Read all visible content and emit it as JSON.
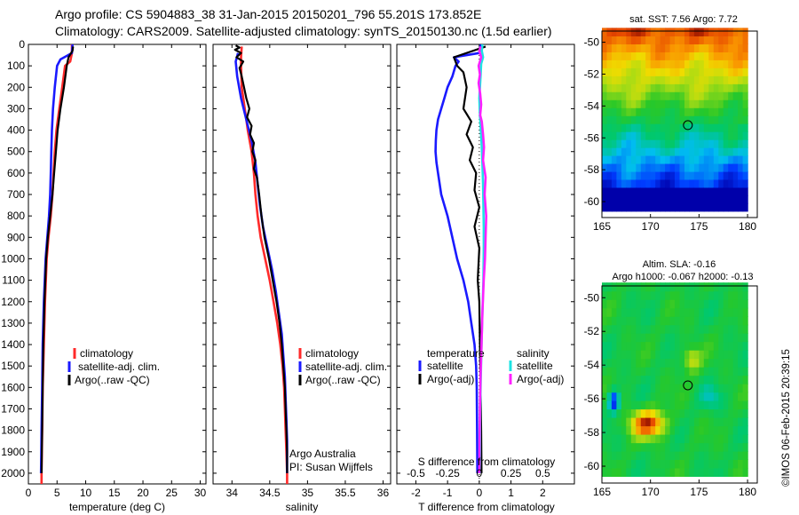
{
  "titles": {
    "line1": "Argo profile: CS 5904883_38 31-Jan-2015 20150201_796 55.201S 173.852E",
    "line2": "Climatology: CARS2009. Satellite-adjusted climatology: synTS_20150130.nc (1.5d earlier)"
  },
  "colors": {
    "red": "#ff2a2a",
    "blue": "#1a1aff",
    "black": "#000000",
    "cyan": "#1de3e3",
    "magenta": "#ff20ff"
  },
  "chart_data": [
    {
      "type": "line",
      "panel": "temperature",
      "xlabel": "temperature (deg C)",
      "ylabel": "",
      "xlim": [
        0,
        31
      ],
      "ylim": [
        2050,
        0
      ],
      "xticks": [
        0,
        5,
        10,
        15,
        20,
        25,
        30
      ],
      "yticks": [
        0,
        100,
        200,
        300,
        400,
        500,
        600,
        700,
        800,
        900,
        1000,
        1100,
        1200,
        1300,
        1400,
        1500,
        1600,
        1700,
        1800,
        1900,
        2000
      ],
      "legend": [
        "climatology",
        "satellite-adj. clim.",
        "Argo(..raw -QC)"
      ],
      "series": [
        {
          "name": "climatology",
          "color": "red",
          "points": [
            [
              7.6,
              0
            ],
            [
              7.6,
              40
            ],
            [
              7.3,
              80
            ],
            [
              6.4,
              100
            ],
            [
              5.9,
              200
            ],
            [
              5.4,
              300
            ],
            [
              4.9,
              400
            ],
            [
              4.6,
              500
            ],
            [
              4.4,
              600
            ],
            [
              4.2,
              700
            ],
            [
              3.9,
              800
            ],
            [
              3.5,
              900
            ],
            [
              3.2,
              1000
            ],
            [
              2.9,
              1200
            ],
            [
              2.7,
              1400
            ],
            [
              2.5,
              1600
            ],
            [
              2.4,
              1800
            ],
            [
              2.3,
              2000
            ],
            [
              2.3,
              2050
            ]
          ]
        },
        {
          "name": "satellite-adj. clim.",
          "color": "blue",
          "points": [
            [
              7.7,
              0
            ],
            [
              7.6,
              40
            ],
            [
              5.6,
              70
            ],
            [
              5.0,
              100
            ],
            [
              4.6,
              200
            ],
            [
              4.3,
              300
            ],
            [
              4.1,
              400
            ],
            [
              4.0,
              500
            ],
            [
              3.9,
              600
            ],
            [
              3.8,
              700
            ],
            [
              3.6,
              800
            ],
            [
              3.3,
              900
            ],
            [
              3.0,
              1000
            ],
            [
              2.7,
              1200
            ],
            [
              2.5,
              1400
            ],
            [
              2.4,
              1600
            ],
            [
              2.3,
              1800
            ],
            [
              2.2,
              2000
            ]
          ]
        },
        {
          "name": "Argo(..raw -QC)",
          "color": "black",
          "points": [
            [
              7.8,
              10
            ],
            [
              7.7,
              30
            ],
            [
              7.0,
              60
            ],
            [
              6.7,
              100
            ],
            [
              6.2,
              200
            ],
            [
              5.6,
              300
            ],
            [
              5.1,
              400
            ],
            [
              4.8,
              500
            ],
            [
              4.5,
              600
            ],
            [
              4.2,
              700
            ],
            [
              3.8,
              800
            ],
            [
              3.4,
              900
            ],
            [
              3.1,
              1000
            ],
            [
              2.8,
              1200
            ],
            [
              2.6,
              1400
            ],
            [
              2.5,
              1600
            ],
            [
              2.4,
              1800
            ],
            [
              2.3,
              2000
            ]
          ]
        }
      ]
    },
    {
      "type": "line",
      "panel": "salinity",
      "xlabel": "salinity",
      "xlim": [
        33.75,
        36.1
      ],
      "ylim": [
        2050,
        0
      ],
      "xticks": [
        34,
        34.5,
        35,
        35.5,
        36
      ],
      "legend": [
        "climatology",
        "satellite-adj. clim.",
        "Argo(..raw -QC)"
      ],
      "annotations": [
        "Argo Australia",
        "PI: Susan Wijffels"
      ],
      "series": [
        {
          "name": "climatology",
          "color": "red",
          "points": [
            [
              34.13,
              10
            ],
            [
              34.12,
              60
            ],
            [
              34.12,
              100
            ],
            [
              34.13,
              200
            ],
            [
              34.17,
              300
            ],
            [
              34.21,
              400
            ],
            [
              34.26,
              500
            ],
            [
              34.29,
              600
            ],
            [
              34.31,
              700
            ],
            [
              34.34,
              800
            ],
            [
              34.38,
              900
            ],
            [
              34.44,
              1000
            ],
            [
              34.5,
              1100
            ],
            [
              34.55,
              1200
            ],
            [
              34.6,
              1300
            ],
            [
              34.64,
              1400
            ],
            [
              34.67,
              1500
            ],
            [
              34.69,
              1600
            ],
            [
              34.7,
              1700
            ],
            [
              34.71,
              1800
            ],
            [
              34.72,
              1900
            ],
            [
              34.73,
              2000
            ],
            [
              34.73,
              2050
            ]
          ]
        },
        {
          "name": "satellite-adj. clim.",
          "color": "blue",
          "points": [
            [
              34.08,
              40
            ],
            [
              34.05,
              80
            ],
            [
              34.07,
              150
            ],
            [
              34.12,
              250
            ],
            [
              34.19,
              350
            ],
            [
              34.26,
              450
            ],
            [
              34.31,
              550
            ],
            [
              34.34,
              650
            ],
            [
              34.37,
              750
            ],
            [
              34.41,
              850
            ],
            [
              34.47,
              950
            ],
            [
              34.53,
              1050
            ],
            [
              34.58,
              1150
            ],
            [
              34.62,
              1250
            ],
            [
              34.66,
              1350
            ],
            [
              34.68,
              1450
            ],
            [
              34.7,
              1550
            ],
            [
              34.71,
              1650
            ],
            [
              34.72,
              1750
            ],
            [
              34.73,
              1850
            ],
            [
              34.73,
              2000
            ]
          ]
        },
        {
          "name": "Argo(..raw -QC)",
          "color": "black",
          "points": [
            [
              34.05,
              5
            ],
            [
              34.1,
              15
            ],
            [
              34.04,
              25
            ],
            [
              34.12,
              40
            ],
            [
              34.06,
              60
            ],
            [
              34.15,
              80
            ],
            [
              34.1,
              110
            ],
            [
              34.13,
              150
            ],
            [
              34.16,
              200
            ],
            [
              34.19,
              250
            ],
            [
              34.23,
              300
            ],
            [
              34.2,
              340
            ],
            [
              34.26,
              380
            ],
            [
              34.24,
              420
            ],
            [
              34.29,
              460
            ],
            [
              34.27,
              500
            ],
            [
              34.31,
              540
            ],
            [
              34.29,
              580
            ],
            [
              34.33,
              620
            ],
            [
              34.36,
              700
            ],
            [
              34.39,
              800
            ],
            [
              34.43,
              900
            ],
            [
              34.49,
              1000
            ],
            [
              34.54,
              1100
            ],
            [
              34.59,
              1200
            ],
            [
              34.63,
              1300
            ],
            [
              34.66,
              1400
            ],
            [
              34.68,
              1500
            ],
            [
              34.7,
              1600
            ],
            [
              34.71,
              1700
            ],
            [
              34.72,
              1800
            ],
            [
              34.73,
              1900
            ],
            [
              34.73,
              2000
            ]
          ]
        }
      ]
    },
    {
      "type": "line",
      "panel": "difference",
      "xlabel": "T difference from climatology",
      "xlabel2": "S difference from climatology",
      "xlim": [
        -2.6,
        3.0
      ],
      "ylim": [
        2050,
        0
      ],
      "xticks": [
        -2,
        -1,
        0,
        1,
        2
      ],
      "xticks2": [
        "-0.5",
        "-0.25",
        "0",
        "0.25",
        "0.5"
      ],
      "legend_headers": [
        "temperature",
        "salinity"
      ],
      "legend": [
        "satellite",
        "Argo(-adj)",
        "satellite",
        "Argo(-adj)"
      ],
      "series": [
        {
          "name": "T satellite",
          "color": "blue",
          "points": [
            [
              0.05,
              0
            ],
            [
              0.0,
              40
            ],
            [
              -0.8,
              60
            ],
            [
              -0.65,
              80
            ],
            [
              -0.75,
              100
            ],
            [
              -0.85,
              150
            ],
            [
              -1.0,
              200
            ],
            [
              -1.1,
              250
            ],
            [
              -1.2,
              300
            ],
            [
              -1.3,
              350
            ],
            [
              -1.35,
              400
            ],
            [
              -1.37,
              450
            ],
            [
              -1.38,
              500
            ],
            [
              -1.35,
              550
            ],
            [
              -1.3,
              600
            ],
            [
              -1.2,
              700
            ],
            [
              -1.0,
              800
            ],
            [
              -0.85,
              900
            ],
            [
              -0.7,
              1000
            ],
            [
              -0.5,
              1100
            ],
            [
              -0.35,
              1200
            ],
            [
              -0.25,
              1300
            ],
            [
              -0.15,
              1400
            ],
            [
              -0.1,
              1500
            ],
            [
              -0.08,
              1600
            ],
            [
              -0.07,
              1800
            ],
            [
              -0.06,
              2000
            ]
          ]
        },
        {
          "name": "T Argo(-adj)",
          "color": "black",
          "points": [
            [
              0.2,
              10
            ],
            [
              -0.8,
              60
            ],
            [
              -0.7,
              100
            ],
            [
              -0.5,
              130
            ],
            [
              -0.4,
              200
            ],
            [
              -0.5,
              300
            ],
            [
              -0.25,
              360
            ],
            [
              -0.4,
              420
            ],
            [
              -0.2,
              480
            ],
            [
              -0.3,
              540
            ],
            [
              -0.1,
              600
            ],
            [
              -0.15,
              680
            ],
            [
              0.0,
              760
            ],
            [
              -0.15,
              850
            ],
            [
              0.0,
              950
            ],
            [
              -0.05,
              1100
            ],
            [
              0.0,
              1200
            ],
            [
              0.02,
              1400
            ],
            [
              0.04,
              1600
            ],
            [
              0.06,
              1800
            ],
            [
              0.07,
              2000
            ]
          ]
        },
        {
          "name": "S satellite",
          "color": "cyan",
          "points": [
            [
              0.1,
              0
            ],
            [
              0.08,
              30
            ],
            [
              0.12,
              60
            ],
            [
              0.06,
              90
            ],
            [
              0.04,
              150
            ],
            [
              0.0,
              250
            ],
            [
              0.02,
              330
            ],
            [
              0.05,
              400
            ],
            [
              0.08,
              480
            ],
            [
              0.1,
              560
            ],
            [
              0.12,
              650
            ],
            [
              0.13,
              750
            ],
            [
              0.14,
              850
            ],
            [
              0.14,
              950
            ],
            [
              0.13,
              1100
            ],
            [
              0.1,
              1250
            ],
            [
              0.07,
              1400
            ],
            [
              0.05,
              1550
            ],
            [
              0.03,
              1700
            ],
            [
              0.02,
              1900
            ],
            [
              0.01,
              2000
            ]
          ]
        },
        {
          "name": "S Argo(-adj)",
          "color": "magenta",
          "points": [
            [
              0.04,
              10
            ],
            [
              0.0,
              30
            ],
            [
              0.06,
              60
            ],
            [
              -0.02,
              100
            ],
            [
              0.02,
              140
            ],
            [
              -0.02,
              180
            ],
            [
              0.03,
              230
            ],
            [
              0.06,
              280
            ],
            [
              0.03,
              330
            ],
            [
              0.08,
              360
            ],
            [
              0.12,
              420
            ],
            [
              0.15,
              480
            ],
            [
              0.12,
              540
            ],
            [
              0.2,
              620
            ],
            [
              0.17,
              700
            ],
            [
              0.22,
              800
            ],
            [
              0.2,
              900
            ],
            [
              0.18,
              1000
            ],
            [
              0.14,
              1100
            ],
            [
              0.1,
              1250
            ],
            [
              0.07,
              1400
            ],
            [
              0.04,
              1550
            ],
            [
              0.02,
              1700
            ],
            [
              0.01,
              1850
            ],
            [
              0.0,
              2000
            ]
          ]
        }
      ]
    },
    {
      "type": "heatmap",
      "panel": "sst_map",
      "title": "sat. SST: 7.56 Argo: 7.72",
      "xlim": [
        165,
        181
      ],
      "ylim": [
        -61,
        -49.3
      ],
      "xticks": [
        165,
        170,
        175,
        180
      ],
      "yticks": [
        -50,
        -52,
        -54,
        -56,
        -58,
        -60
      ],
      "marker": {
        "lon": 173.852,
        "lat": -55.201
      }
    },
    {
      "type": "heatmap",
      "panel": "sla_map",
      "title": "Altim. SLA: -0.16",
      "subtitle": "Argo h1000: -0.067 h2000: -0.13",
      "xlim": [
        165,
        181
      ],
      "ylim": [
        -61,
        -49.3
      ],
      "xticks": [
        165,
        170,
        175,
        180
      ],
      "yticks": [
        -50,
        -52,
        -54,
        -56,
        -58,
        -60
      ],
      "marker": {
        "lon": 173.852,
        "lat": -55.201
      }
    }
  ],
  "stamp": "©IMOS 06-Feb-2015 20:39:15"
}
